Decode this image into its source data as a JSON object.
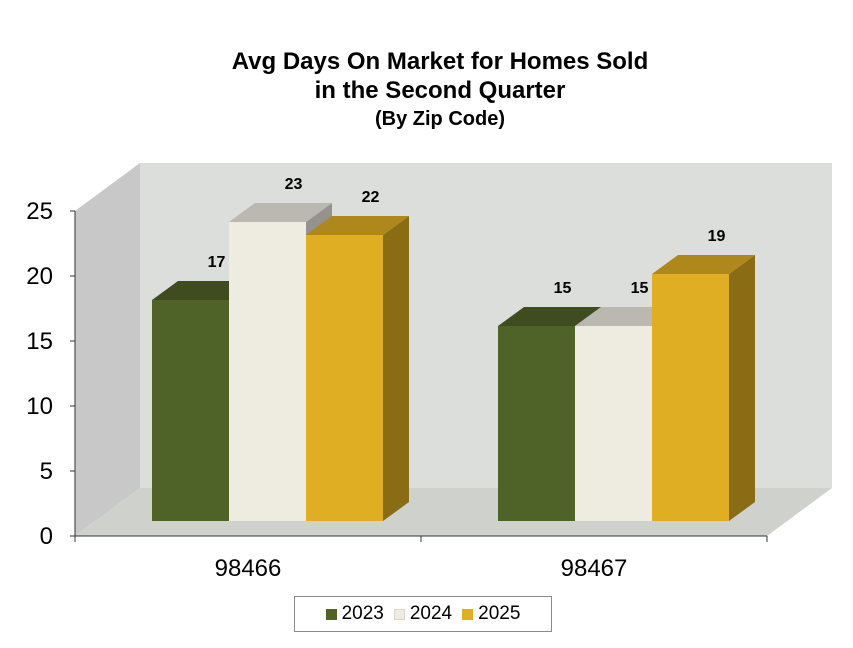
{
  "chart_data": {
    "type": "bar",
    "title_lines": [
      "Avg Days On Market for Homes Sold",
      "in the Second Quarter",
      "(By Zip Code)"
    ],
    "categories": [
      "98466",
      "98467"
    ],
    "series": [
      {
        "name": "2023",
        "values": [
          17,
          15
        ],
        "color": "#4f6228"
      },
      {
        "name": "2024",
        "values": [
          23,
          15
        ],
        "color": "#eeece1"
      },
      {
        "name": "2025",
        "values": [
          22,
          19
        ],
        "color": "#dfae22"
      }
    ],
    "y_ticks": [
      "0",
      "5",
      "10",
      "15",
      "20",
      "25"
    ],
    "ylim": [
      0,
      25
    ],
    "data_labels": true,
    "legend_position": "bottom",
    "grid": false,
    "style": "3d-clustered-column"
  }
}
